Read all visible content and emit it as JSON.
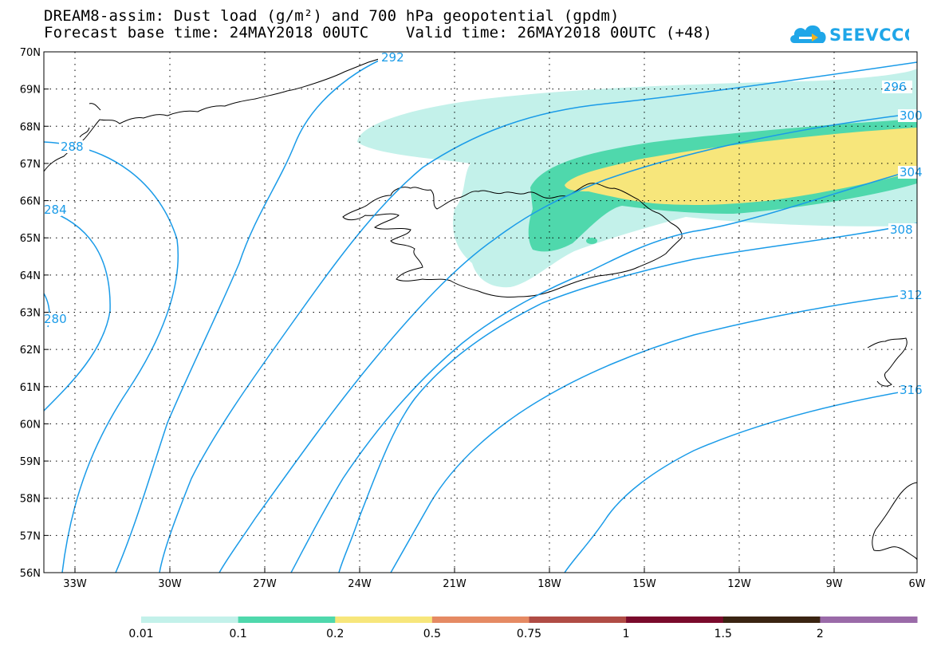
{
  "header": {
    "title_line1": "DREAM8-assim: Dust load (g/m²) and 700 hPa geopotential (gpdm)",
    "title_line2": "Forecast base time: 24MAY2018 00UTC    Valid time: 26MAY2018 00UTC (+48)"
  },
  "logo": {
    "text": "SEEVCCC",
    "icon": "cloud-logo-icon",
    "color": "#1fa6e8"
  },
  "map": {
    "region": "Iceland and North Atlantic",
    "lat_labels": [
      "70N",
      "69N",
      "68N",
      "67N",
      "66N",
      "65N",
      "64N",
      "63N",
      "62N",
      "61N",
      "60N",
      "59N",
      "58N",
      "57N",
      "56N"
    ],
    "lon_labels": [
      "33W",
      "30W",
      "27W",
      "24W",
      "21W",
      "18W",
      "15W",
      "12W",
      "9W",
      "6W"
    ],
    "contour_color": "#1a9be8",
    "contour_labels": [
      "292",
      "296",
      "300",
      "304",
      "308",
      "312",
      "316",
      "288",
      "284",
      "280"
    ]
  },
  "colorbar": {
    "labels": [
      "0.01",
      "0.1",
      "0.2",
      "0.5",
      "0.75",
      "1",
      "1.5",
      "2"
    ],
    "colors": [
      "#c3f1ea",
      "#4fd8ac",
      "#f7e67b",
      "#e58a63",
      "#b04c45",
      "#7a0a2c",
      "#3a2412",
      "#9a6aa8"
    ]
  }
}
